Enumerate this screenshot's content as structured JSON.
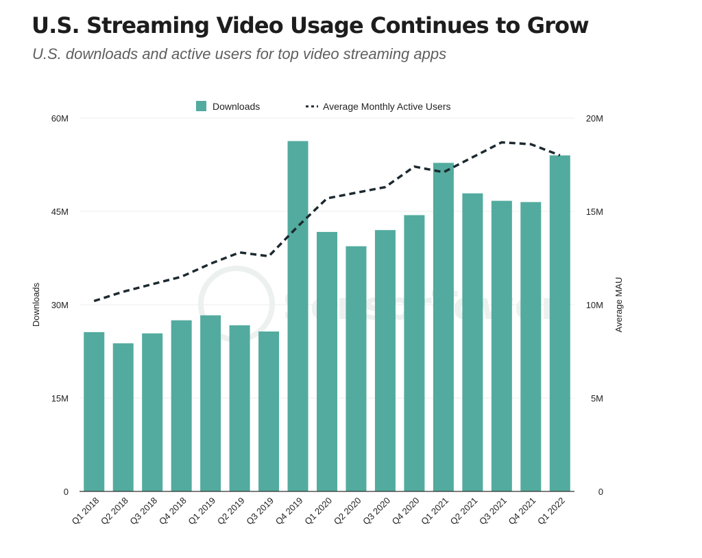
{
  "title": "U.S. Streaming Video Usage Continues to Grow",
  "subtitle": "U.S. downloads and active users for top video streaming apps",
  "watermark": "SensorTower",
  "colors": {
    "bar": "#52ab9e",
    "line": "#1c2a30",
    "grid": "#eeeeee",
    "axis": "#333333"
  },
  "chart_data": {
    "type": "bar",
    "categories": [
      "Q1 2018",
      "Q2 2018",
      "Q3 2018",
      "Q4 2018",
      "Q1 2019",
      "Q2 2019",
      "Q3 2019",
      "Q4 2019",
      "Q1 2020",
      "Q2 2020",
      "Q3 2020",
      "Q4 2020",
      "Q1 2021",
      "Q2 2021",
      "Q3 2021",
      "Q4 2021",
      "Q1 2022"
    ],
    "series": [
      {
        "name": "Downloads",
        "type": "bar",
        "axis": "left",
        "values": [
          25.6,
          23.8,
          25.4,
          27.5,
          28.3,
          26.7,
          25.7,
          56.3,
          41.7,
          39.4,
          42.0,
          44.4,
          52.8,
          47.9,
          46.7,
          46.5,
          54.0
        ]
      },
      {
        "name": "Average Monthly Active Users",
        "type": "line",
        "style": "dashed",
        "axis": "right",
        "values": [
          10.2,
          10.7,
          11.1,
          11.5,
          12.2,
          12.8,
          12.6,
          14.2,
          15.7,
          16.0,
          16.3,
          17.4,
          17.1,
          17.9,
          18.7,
          18.6,
          18.0
        ]
      }
    ],
    "ylabel": "Downloads",
    "ylabel_right": "Average MAU",
    "ylim": [
      0,
      60
    ],
    "ylim_right": [
      0,
      20
    ],
    "yticks": [
      "0",
      "15M",
      "30M",
      "45M",
      "60M"
    ],
    "yticks_right": [
      "0",
      "5M",
      "10M",
      "15M",
      "20M"
    ],
    "legend": [
      "Downloads",
      "Average Monthly Active Users"
    ],
    "legend_position": "top-center",
    "grid": true
  }
}
